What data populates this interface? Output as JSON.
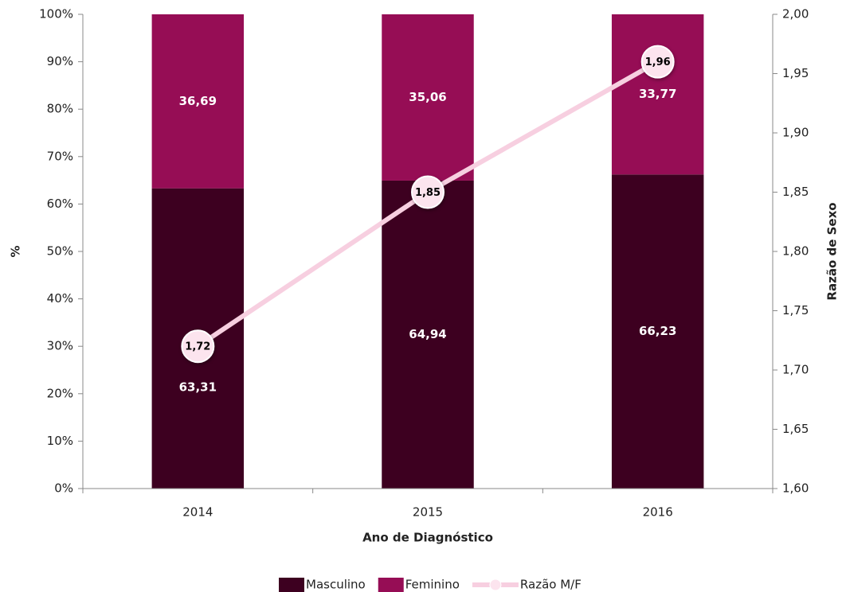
{
  "chart_data": {
    "type": "bar",
    "stacked": true,
    "categories": [
      "2014",
      "2015",
      "2016"
    ],
    "series": [
      {
        "name": "Masculino",
        "color": "#3d0020",
        "values": [
          63.31,
          64.94,
          66.23
        ],
        "value_labels": [
          "63,31",
          "64,94",
          "66,23"
        ]
      },
      {
        "name": "Feminino",
        "color": "#960d55",
        "values": [
          36.69,
          35.06,
          33.77
        ],
        "value_labels": [
          "36,69",
          "35,06",
          "33,77"
        ]
      },
      {
        "name": "Razão M/F",
        "type": "line",
        "axis": "y2",
        "color": "#f7cfe0",
        "values": [
          1.72,
          1.85,
          1.96
        ],
        "value_labels": [
          "1,72",
          "1,85",
          "1,96"
        ]
      }
    ],
    "xlabel": "Ano de Diagnóstico",
    "ylabel": "%",
    "y2label": "Razão de Sexo",
    "ylim": [
      0,
      100
    ],
    "yticks": [
      {
        "value": 0,
        "label": "0%"
      },
      {
        "value": 10,
        "label": "10%"
      },
      {
        "value": 20,
        "label": "20%"
      },
      {
        "value": 30,
        "label": "30%"
      },
      {
        "value": 40,
        "label": "40%"
      },
      {
        "value": 50,
        "label": "50%"
      },
      {
        "value": 60,
        "label": "60%"
      },
      {
        "value": 70,
        "label": "70%"
      },
      {
        "value": 80,
        "label": "80%"
      },
      {
        "value": 90,
        "label": "90%"
      },
      {
        "value": 100,
        "label": "100%"
      }
    ],
    "y2lim": [
      1.6,
      2.0
    ],
    "y2ticks": [
      {
        "value": 1.6,
        "label": "1,60"
      },
      {
        "value": 1.65,
        "label": "1,65"
      },
      {
        "value": 1.7,
        "label": "1,70"
      },
      {
        "value": 1.75,
        "label": "1,75"
      },
      {
        "value": 1.8,
        "label": "1,80"
      },
      {
        "value": 1.85,
        "label": "1,85"
      },
      {
        "value": 1.9,
        "label": "1,90"
      },
      {
        "value": 1.95,
        "label": "1,95"
      },
      {
        "value": 2.0,
        "label": "2,00"
      }
    ],
    "grid": false,
    "legend": "bottom"
  }
}
